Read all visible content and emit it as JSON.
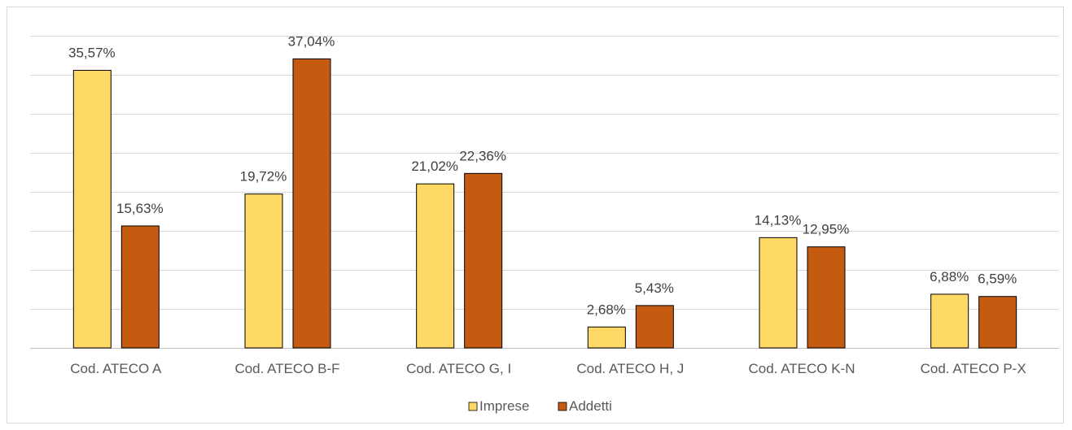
{
  "chart_data": {
    "type": "bar",
    "categories": [
      "Cod. ATECO A",
      "Cod. ATECO B-F",
      "Cod. ATECO G, I",
      "Cod. ATECO H, J",
      "Cod. ATECO K-N",
      "Cod. ATECO P-X"
    ],
    "series": [
      {
        "name": "Imprese",
        "color": "#FFD966",
        "values": [
          35.57,
          19.72,
          21.02,
          2.68,
          14.13,
          6.88
        ],
        "labels": [
          "35,57%",
          "19,72%",
          "21,02%",
          "2,68%",
          "14,13%",
          "6,88%"
        ]
      },
      {
        "name": "Addetti",
        "color": "#C55A11",
        "values": [
          15.63,
          37.04,
          22.36,
          5.43,
          12.95,
          6.59
        ],
        "labels": [
          "15,63%",
          "37,04%",
          "22,36%",
          "5,43%",
          "12,95%",
          "6,59%"
        ]
      }
    ],
    "ylim": [
      0,
      40
    ],
    "grid": true,
    "legend_position": "bottom",
    "title": "",
    "xlabel": "",
    "ylabel": ""
  }
}
